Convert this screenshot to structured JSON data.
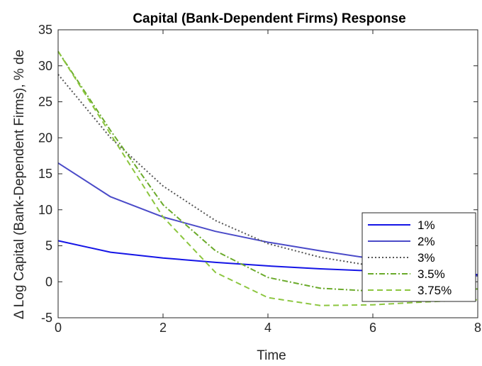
{
  "chart_data": {
    "type": "line",
    "title": "Capital (Bank-Dependent Firms) Response",
    "xlabel": "Time",
    "ylabel": "Δ Log Capital (Bank-Dependent Firms), % de",
    "xlim": [
      0,
      8
    ],
    "ylim": [
      -5,
      35
    ],
    "xticks": [
      "0",
      "2",
      "4",
      "6",
      "8"
    ],
    "yticks": [
      "-5",
      "0",
      "5",
      "10",
      "15",
      "20",
      "25",
      "30",
      "35"
    ],
    "grid": false,
    "legend_position": "lower-right",
    "x": [
      0,
      1,
      2,
      3,
      4,
      5,
      6,
      7,
      8
    ],
    "series": [
      {
        "name": "1%",
        "color": "#1515e6",
        "dash": "solid",
        "values": [
          5.7,
          4.1,
          3.3,
          2.7,
          2.2,
          1.8,
          1.5,
          1.2,
          1.0
        ]
      },
      {
        "name": "2%",
        "color": "#4a4ac8",
        "dash": "solid",
        "values": [
          16.5,
          11.8,
          9.0,
          7.0,
          5.5,
          4.3,
          3.2,
          2.0,
          0.8
        ]
      },
      {
        "name": "3%",
        "color": "#555555",
        "dash": "dotted",
        "values": [
          28.8,
          20.0,
          13.3,
          8.5,
          5.3,
          3.4,
          2.2,
          1.4,
          0.9
        ]
      },
      {
        "name": "3.5%",
        "color": "#6aaa2a",
        "dash": "dashdot",
        "values": [
          32.0,
          21.0,
          10.7,
          4.3,
          0.6,
          -0.9,
          -1.3,
          -1.2,
          -1.0
        ]
      },
      {
        "name": "3.75%",
        "color": "#8cc63f",
        "dash": "dashed",
        "values": [
          32.0,
          20.5,
          9.0,
          1.3,
          -2.2,
          -3.3,
          -3.2,
          -2.8,
          -2.5
        ]
      }
    ]
  }
}
